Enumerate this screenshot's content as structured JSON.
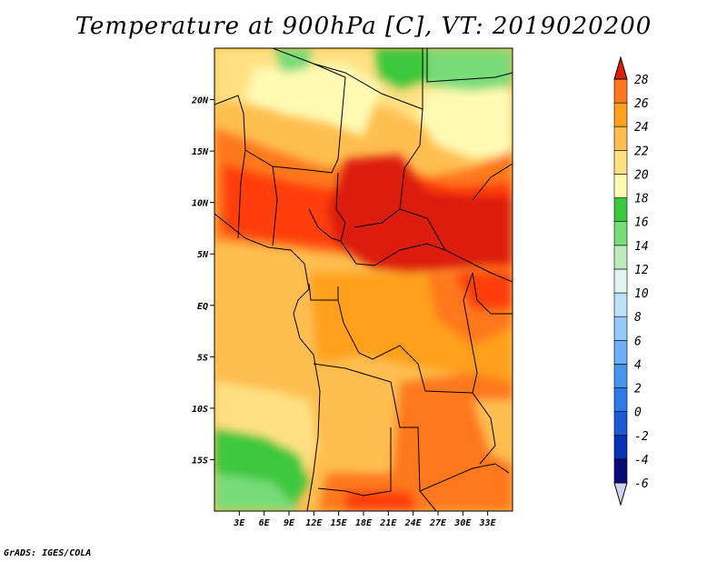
{
  "title": "Temperature at 900hPa [C], VT: 2019020200",
  "credit": "GrADS: IGES/COLA",
  "map": {
    "lon_range": [
      0,
      36
    ],
    "lat_range": [
      -20,
      25
    ],
    "lon_ticks": [
      {
        "value": 3,
        "label": "3E"
      },
      {
        "value": 6,
        "label": "6E"
      },
      {
        "value": 9,
        "label": "9E"
      },
      {
        "value": 12,
        "label": "12E"
      },
      {
        "value": 15,
        "label": "15E"
      },
      {
        "value": 18,
        "label": "18E"
      },
      {
        "value": 21,
        "label": "21E"
      },
      {
        "value": 24,
        "label": "24E"
      },
      {
        "value": 27,
        "label": "27E"
      },
      {
        "value": 30,
        "label": "30E"
      },
      {
        "value": 33,
        "label": "33E"
      }
    ],
    "lat_ticks": [
      {
        "value": 20,
        "label": "20N"
      },
      {
        "value": 15,
        "label": "15N"
      },
      {
        "value": 10,
        "label": "10N"
      },
      {
        "value": 5,
        "label": "5N"
      },
      {
        "value": 0,
        "label": "EQ"
      },
      {
        "value": -5,
        "label": "5S"
      },
      {
        "value": -10,
        "label": "10S"
      },
      {
        "value": -15,
        "label": "15S"
      }
    ]
  },
  "colorbar": {
    "levels": [
      "-6",
      "-4",
      "-2",
      "0",
      "2",
      "4",
      "6",
      "8",
      "10",
      "12",
      "14",
      "16",
      "18",
      "20",
      "22",
      "24",
      "26",
      "28"
    ],
    "colors": [
      "#d2d2f0",
      "#0a0a78",
      "#0a32b4",
      "#1e5ad2",
      "#2d7ae6",
      "#4696f0",
      "#6eaff5",
      "#96c8fa",
      "#bee1fa",
      "#e1f5f0",
      "#beebbe",
      "#78dc78",
      "#3cc83c",
      "#fffab4",
      "#ffe182",
      "#ffbe50",
      "#ffa01e",
      "#ff781e",
      "#ff3c0a",
      "#dc1e0a"
    ]
  }
}
